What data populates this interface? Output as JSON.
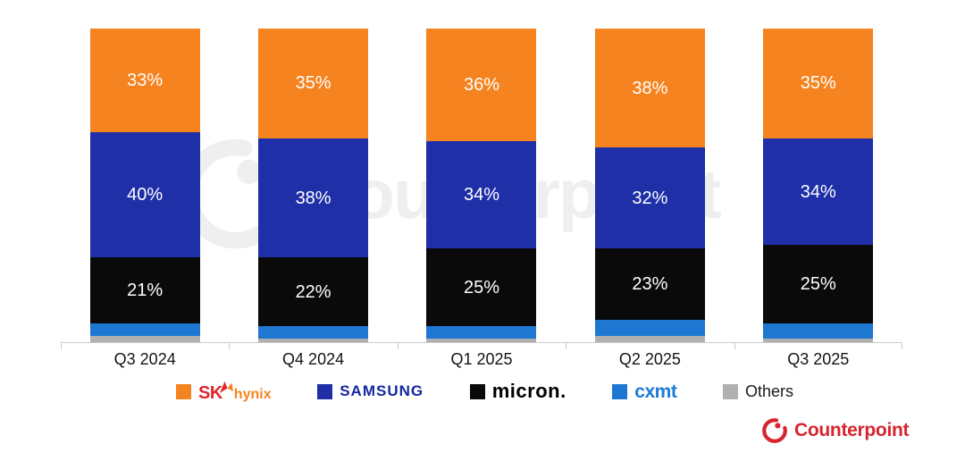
{
  "chart_data": {
    "type": "bar",
    "stacked": true,
    "orientation": "vertical",
    "categories": [
      "Q3 2024",
      "Q4 2024",
      "Q1 2025",
      "Q2 2025",
      "Q3 2025"
    ],
    "series": [
      {
        "name": "SK hynix",
        "color": "#F5831F",
        "values": [
          33,
          35,
          36,
          38,
          35
        ],
        "labels_shown": true
      },
      {
        "name": "Samsung",
        "color": "#1E2FA7",
        "values": [
          40,
          38,
          34,
          32,
          34
        ],
        "labels_shown": true
      },
      {
        "name": "Micron",
        "color": "#0A0A0A",
        "values": [
          21,
          22,
          25,
          23,
          25
        ],
        "labels_shown": true
      },
      {
        "name": "CXMT",
        "color": "#1E78D2",
        "values": [
          4,
          4,
          4,
          5,
          5
        ],
        "labels_shown": false
      },
      {
        "name": "Others",
        "color": "#B0B0B0",
        "values": [
          2,
          1,
          1,
          2,
          1
        ],
        "labels_shown": false
      }
    ],
    "value_suffix": "%",
    "ylim": [
      0,
      100
    ],
    "grid": false,
    "legend_position": "bottom"
  },
  "legend": {
    "sk_hynix": {
      "sk": "SK",
      "hynix": "hynix"
    },
    "samsung_label": "SAMSUNG",
    "micron_label": "micron.",
    "cxmt_label": "cxmt",
    "others_label": "Others"
  },
  "watermark": {
    "text": "Counterpoint"
  },
  "footer": {
    "brand": "Counterpoint",
    "color": "#D7242E"
  },
  "colors": {
    "axis": "#CACACA",
    "category_label": "#141414",
    "percent_label": "#FFFFFF",
    "watermark": "#EFEFEF"
  }
}
